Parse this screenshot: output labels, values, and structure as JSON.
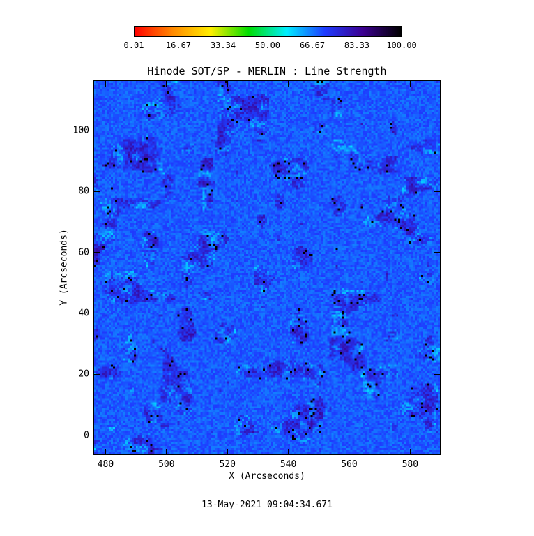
{
  "chart_data": {
    "type": "heatmap",
    "title": "Hinode SOT/SP - MERLIN : Line Strength",
    "xlabel": "X (Arcseconds)",
    "ylabel": "Y (Arcseconds)",
    "xlim": [
      476,
      590
    ],
    "ylim": [
      -6.5,
      116.5
    ],
    "x_ticks": [
      "480",
      "500",
      "520",
      "540",
      "560",
      "580"
    ],
    "x_tick_values": [
      480,
      500,
      520,
      540,
      560,
      580
    ],
    "y_ticks": [
      "0",
      "20",
      "40",
      "60",
      "80",
      "100"
    ],
    "y_tick_values": [
      0,
      20,
      40,
      60,
      80,
      100
    ],
    "colorbar": {
      "min": 0.01,
      "max": 100.0,
      "tick_labels": [
        "0.01",
        "16.67",
        "33.34",
        "50.00",
        "66.67",
        "83.33",
        "100.00"
      ],
      "tick_values": [
        0.01,
        16.67,
        33.34,
        50.0,
        66.67,
        83.33,
        100.0
      ],
      "colormap": "rainbow (red-orange-yellow-green-cyan-blue-purple-black)",
      "stops": [
        "#ff0000",
        "#ff8800",
        "#ffee00",
        "#00dd00",
        "#00eeff",
        "#1e3cff",
        "#3c0090",
        "#000000"
      ]
    },
    "values_description": "Dense pixel field dominated by values ~80-90 (blue), with cyan patches (~65-70) and dark purple/black speckles (~90-100)",
    "dominant_value_range": [
      62,
      100
    ]
  },
  "timestamp": "13-May-2021 09:04:34.671"
}
